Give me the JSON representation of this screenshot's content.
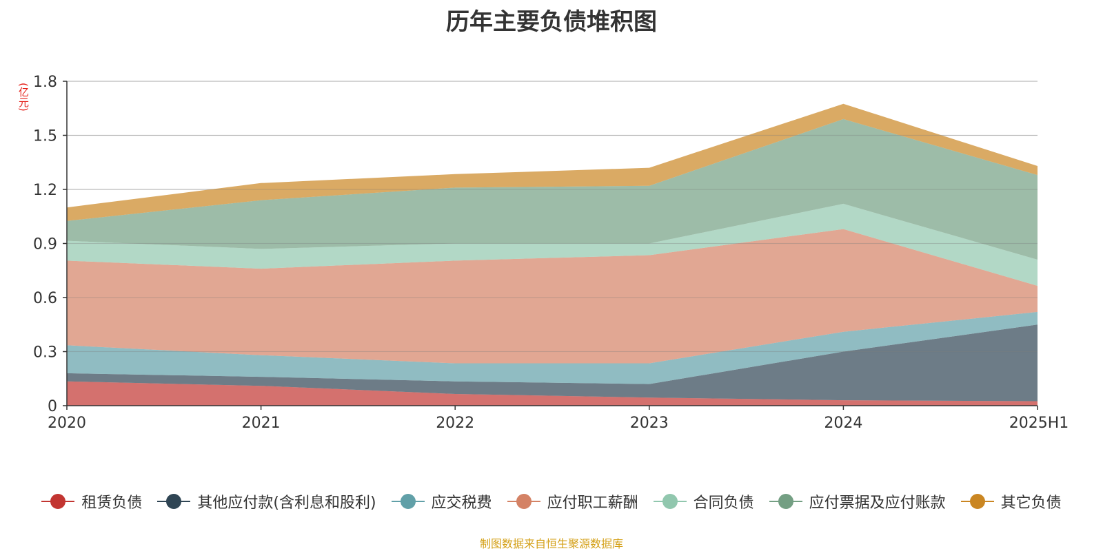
{
  "chart_data": {
    "type": "area",
    "stacked": true,
    "title": "历年主要负债堆积图",
    "ylabel": "(亿元)",
    "xlabel": "",
    "categories": [
      "2020",
      "2021",
      "2022",
      "2023",
      "2024",
      "2025H1"
    ],
    "ylim": [
      0,
      1.8
    ],
    "yticks": [
      "0",
      "0.3",
      "0.6",
      "0.9",
      "1.2",
      "1.5",
      "1.8"
    ],
    "grid": true,
    "legend_position": "bottom",
    "series": [
      {
        "name": "租赁负债",
        "color": "#c23531",
        "values": [
          0.135,
          0.11,
          0.065,
          0.045,
          0.03,
          0.025
        ]
      },
      {
        "name": "其他应付款(含利息和股利)",
        "color": "#2f4554",
        "values": [
          0.045,
          0.05,
          0.07,
          0.075,
          0.27,
          0.425
        ]
      },
      {
        "name": "应交税费",
        "color": "#61a0a8",
        "values": [
          0.155,
          0.12,
          0.1,
          0.115,
          0.11,
          0.07
        ]
      },
      {
        "name": "应付职工薪酬",
        "color": "#d48265",
        "values": [
          0.47,
          0.48,
          0.57,
          0.6,
          0.57,
          0.145
        ]
      },
      {
        "name": "合同负债",
        "color": "#91c7ae",
        "values": [
          0.11,
          0.11,
          0.095,
          0.065,
          0.14,
          0.145
        ]
      },
      {
        "name": "应付票据及应付账款",
        "color": "#749f83",
        "values": [
          0.11,
          0.27,
          0.31,
          0.32,
          0.47,
          0.47
        ]
      },
      {
        "name": "其它负债",
        "color": "#ca8622",
        "values": [
          0.075,
          0.095,
          0.075,
          0.1,
          0.085,
          0.05
        ]
      }
    ]
  },
  "source_note": "制图数据来自恒生聚源数据库"
}
